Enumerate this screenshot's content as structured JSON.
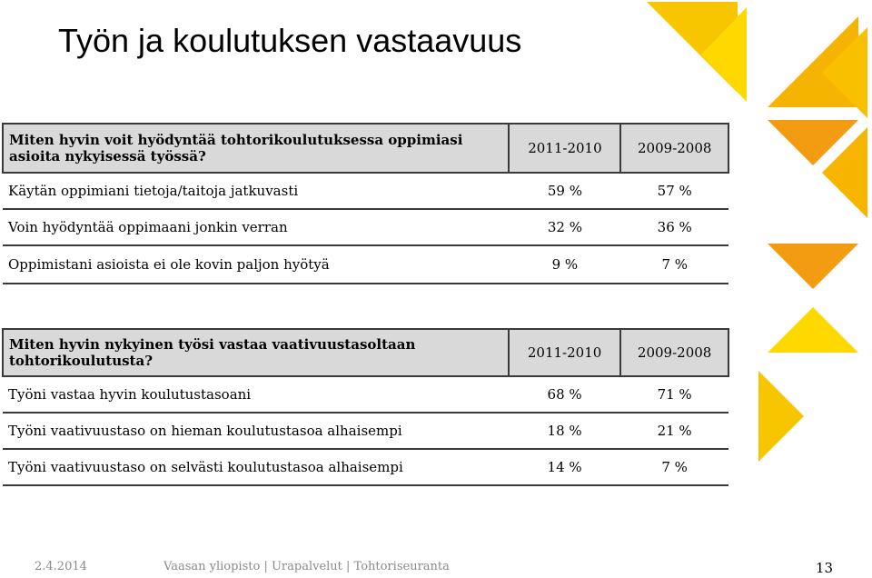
{
  "title": "Työn ja koulutuksen vastaavuus",
  "tables": [
    {
      "header": [
        "Miten hyvin voit hyödyntää tohtorikoulutuksessa oppimiasi asioita nykyisessä työssä?",
        "2011-2010",
        "2009-2008"
      ],
      "rows": [
        [
          "Käytän oppimiani tietoja/taitoja jatkuvasti",
          "59 %",
          "57 %"
        ],
        [
          "Voin hyödyntää oppimaani jonkin verran",
          "32 %",
          "36 %"
        ],
        [
          "Oppimistani asioista ei ole kovin paljon hyötyä",
          "9 %",
          "7 %"
        ]
      ]
    },
    {
      "header": [
        "Miten hyvin nykyinen työsi vastaa vaativuustasoltaan tohtorikoulutusta?",
        "2011-2010",
        "2009-2008"
      ],
      "rows": [
        [
          "Työni vastaa hyvin koulutustasoani",
          "68 %",
          "71 %"
        ],
        [
          "Työni vaativuustaso on hieman koulutustasoa alhaisempi",
          "18 %",
          "21 %"
        ],
        [
          "Työni vaativuustaso on selvästi koulutustasoa alhaisempi",
          "14 %",
          "7 %"
        ]
      ]
    }
  ],
  "footer": {
    "date": "2.4.2014",
    "source": "Vaasan yliopisto | Urapalvelut | Tohtoriseuranta",
    "page": "13"
  }
}
